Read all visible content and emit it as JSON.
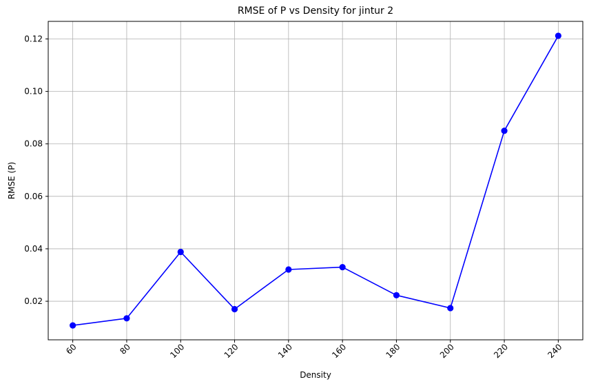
{
  "chart_data": {
    "type": "line",
    "title": "RMSE of P vs Density for jintur 2",
    "xlabel": "Density",
    "ylabel": "RMSE (P)",
    "x": [
      60,
      80,
      100,
      120,
      140,
      160,
      180,
      200,
      220,
      240
    ],
    "series": [
      {
        "values": [
          0.0108,
          0.0135,
          0.0388,
          0.017,
          0.0321,
          0.033,
          0.0223,
          0.0174,
          0.085,
          0.1212
        ],
        "color": "#0000ff",
        "marker": "circle"
      }
    ],
    "xlim": [
      50.9,
      249.1
    ],
    "ylim": [
      0.0053,
      0.1267
    ],
    "xticks": [
      60,
      80,
      100,
      120,
      140,
      160,
      180,
      200,
      220,
      240
    ],
    "xtick_labels": [
      "60",
      "80",
      "100",
      "120",
      "140",
      "160",
      "180",
      "200",
      "220",
      "240"
    ],
    "xtick_rotation": 45,
    "yticks": [
      0.02,
      0.04,
      0.06,
      0.08,
      0.1,
      0.12
    ],
    "ytick_labels": [
      "0.02",
      "0.04",
      "0.06",
      "0.08",
      "0.10",
      "0.12"
    ],
    "grid": true,
    "legend": "none"
  }
}
